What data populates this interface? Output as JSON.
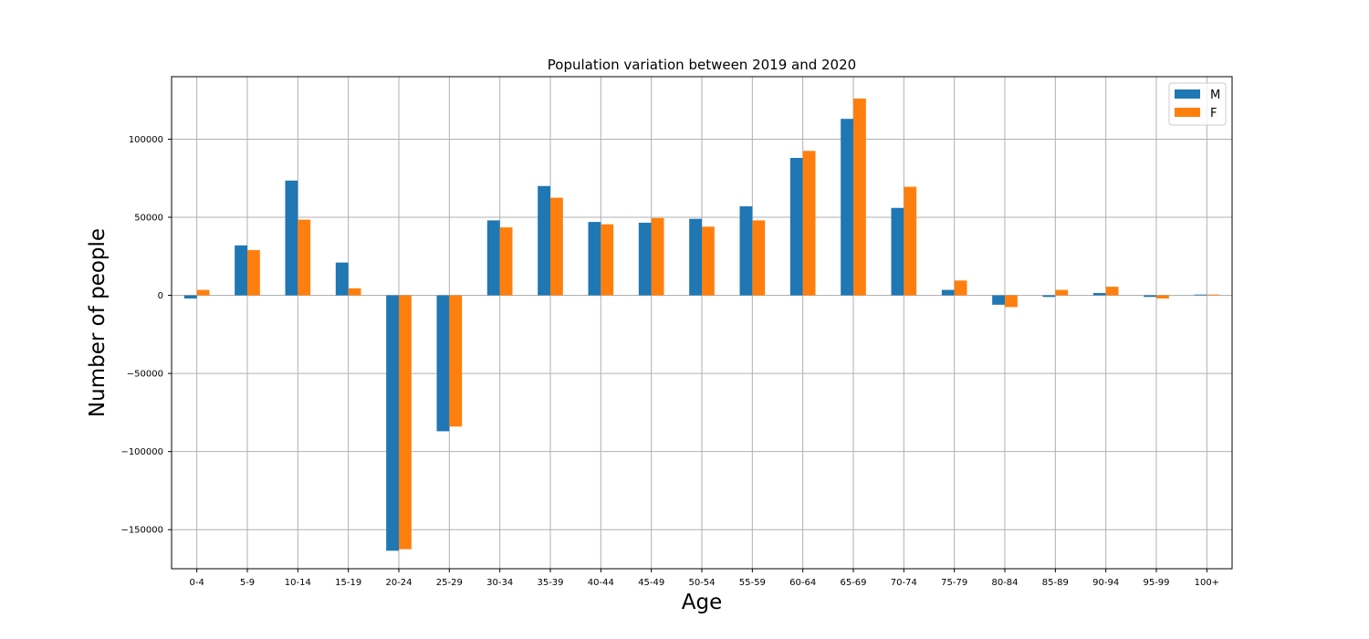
{
  "chart_data": {
    "type": "bar",
    "title": "Population variation between 2019 and 2020",
    "xlabel": "Age",
    "ylabel": "Number of people",
    "categories": [
      "0-4",
      "5-9",
      "10-14",
      "15-19",
      "20-24",
      "25-29",
      "30-34",
      "35-39",
      "40-44",
      "45-49",
      "50-54",
      "55-59",
      "60-64",
      "65-69",
      "70-74",
      "75-79",
      "80-84",
      "85-89",
      "90-94",
      "95-99",
      "100+"
    ],
    "series": [
      {
        "name": "M",
        "color": "#1f77b4",
        "values": [
          -2000,
          32000,
          73500,
          21000,
          -163500,
          -87000,
          48000,
          70000,
          47000,
          46500,
          49000,
          57000,
          88000,
          113000,
          56000,
          3500,
          -6000,
          -1000,
          1500,
          -1000,
          500
        ]
      },
      {
        "name": "F",
        "color": "#ff7f0e",
        "values": [
          3500,
          29000,
          48500,
          4500,
          -162500,
          -84000,
          43500,
          62500,
          45500,
          49500,
          44000,
          48000,
          92500,
          126000,
          69500,
          9500,
          -7500,
          3500,
          5500,
          -2000,
          500
        ]
      }
    ],
    "ylim": [
      -175000,
      140000
    ],
    "yticks": [
      -150000,
      -100000,
      -50000,
      0,
      50000,
      100000
    ],
    "grid": true,
    "legend_position": "top-right"
  }
}
